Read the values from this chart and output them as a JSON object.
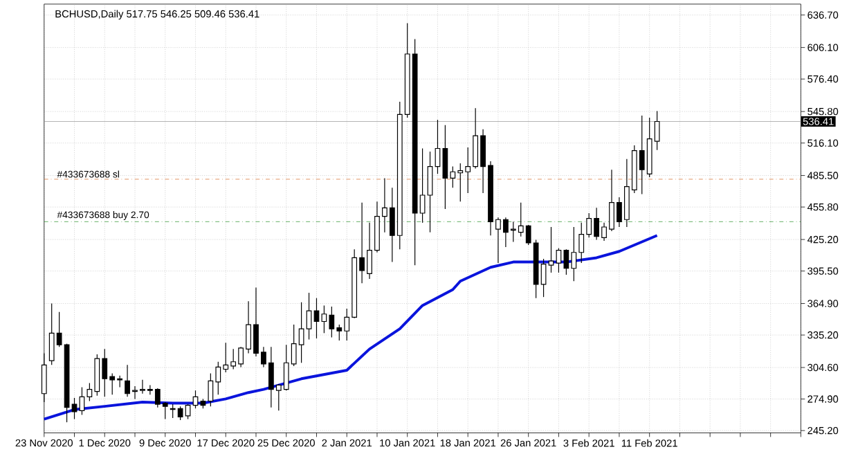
{
  "chart_data": {
    "type": "candlestick",
    "title": "BCHUSD,Daily 517.75 546.25 509.46 536.41",
    "x": [
      "2020-11-23",
      "2020-11-24",
      "2020-11-25",
      "2020-11-26",
      "2020-11-27",
      "2020-11-28",
      "2020-11-29",
      "2020-11-30",
      "2020-12-01",
      "2020-12-02",
      "2020-12-03",
      "2020-12-04",
      "2020-12-05",
      "2020-12-06",
      "2020-12-07",
      "2020-12-08",
      "2020-12-09",
      "2020-12-10",
      "2020-12-11",
      "2020-12-12",
      "2020-12-13",
      "2020-12-14",
      "2020-12-15",
      "2020-12-16",
      "2020-12-17",
      "2020-12-18",
      "2020-12-19",
      "2020-12-20",
      "2020-12-21",
      "2020-12-22",
      "2020-12-23",
      "2020-12-24",
      "2020-12-25",
      "2020-12-26",
      "2020-12-27",
      "2020-12-28",
      "2020-12-29",
      "2020-12-30",
      "2020-12-31",
      "2021-01-01",
      "2021-01-02",
      "2021-01-03",
      "2021-01-04",
      "2021-01-05",
      "2021-01-06",
      "2021-01-07",
      "2021-01-08",
      "2021-01-09",
      "2021-01-10",
      "2021-01-11",
      "2021-01-12",
      "2021-01-13",
      "2021-01-14",
      "2021-01-15",
      "2021-01-16",
      "2021-01-17",
      "2021-01-18",
      "2021-01-19",
      "2021-01-20",
      "2021-01-21",
      "2021-01-22",
      "2021-01-23",
      "2021-01-24",
      "2021-01-25",
      "2021-01-26",
      "2021-01-27",
      "2021-01-28",
      "2021-01-29",
      "2021-01-30",
      "2021-01-31",
      "2021-02-01",
      "2021-02-02",
      "2021-02-03",
      "2021-02-04",
      "2021-02-05",
      "2021-02-06",
      "2021-02-07",
      "2021-02-08",
      "2021-02-09",
      "2021-02-10",
      "2021-02-11",
      "2021-02-12"
    ],
    "ohlc": [
      [
        280,
        318,
        272,
        307
      ],
      [
        311,
        365,
        307,
        337
      ],
      [
        337,
        357,
        324,
        326
      ],
      [
        326,
        327,
        253,
        267
      ],
      [
        270,
        276,
        256,
        263
      ],
      [
        264,
        286,
        260,
        277
      ],
      [
        277,
        290,
        273,
        284
      ],
      [
        282,
        317,
        278,
        313
      ],
      [
        313,
        322,
        277,
        294
      ],
      [
        296,
        299,
        279,
        293
      ],
      [
        294,
        297,
        286,
        293
      ],
      [
        292,
        307,
        277,
        280
      ],
      [
        282,
        287,
        275,
        283
      ],
      [
        283,
        293,
        280,
        284
      ],
      [
        284,
        288,
        279,
        283
      ],
      [
        284,
        285,
        267,
        270
      ],
      [
        271,
        272,
        256,
        268
      ],
      [
        266,
        270,
        257,
        265
      ],
      [
        266,
        268,
        255,
        258
      ],
      [
        259,
        270,
        256,
        269
      ],
      [
        269,
        283,
        266,
        277
      ],
      [
        273,
        275,
        266,
        269
      ],
      [
        273,
        299,
        268,
        292
      ],
      [
        291,
        310,
        279,
        305
      ],
      [
        303,
        328,
        300,
        307
      ],
      [
        306,
        322,
        303,
        310
      ],
      [
        308,
        324,
        305,
        323
      ],
      [
        322,
        367,
        318,
        345
      ],
      [
        345,
        380,
        315,
        318
      ],
      [
        319,
        324,
        305,
        308
      ],
      [
        309,
        324,
        267,
        284
      ],
      [
        283,
        289,
        264,
        288
      ],
      [
        284,
        326,
        283,
        309
      ],
      [
        308,
        345,
        306,
        327
      ],
      [
        326,
        366,
        309,
        341
      ],
      [
        341,
        375,
        331,
        358
      ],
      [
        358,
        370,
        332,
        348
      ],
      [
        348,
        363,
        337,
        355
      ],
      [
        354,
        362,
        333,
        341
      ],
      [
        342,
        345,
        330,
        339
      ],
      [
        339,
        360,
        330,
        352
      ],
      [
        352,
        416,
        351,
        408
      ],
      [
        408,
        460,
        384,
        396
      ],
      [
        393,
        441,
        388,
        415
      ],
      [
        415,
        461,
        413,
        447
      ],
      [
        447,
        483,
        432,
        455
      ],
      [
        455,
        474,
        404,
        429
      ],
      [
        429,
        555,
        416,
        543
      ],
      [
        543,
        629,
        540,
        600
      ],
      [
        600,
        614,
        401,
        450
      ],
      [
        450,
        511,
        441,
        467
      ],
      [
        467,
        508,
        432,
        494
      ],
      [
        494,
        538,
        487,
        511
      ],
      [
        511,
        533,
        454,
        483
      ],
      [
        483,
        494,
        474,
        489
      ],
      [
        488,
        497,
        461,
        490
      ],
      [
        489,
        512,
        469,
        494
      ],
      [
        494,
        549,
        492,
        523
      ],
      [
        523,
        529,
        469,
        494
      ],
      [
        495,
        499,
        429,
        442
      ],
      [
        435,
        446,
        403,
        444
      ],
      [
        444,
        446,
        418,
        432
      ],
      [
        434,
        442,
        423,
        435
      ],
      [
        432,
        460,
        428,
        438
      ],
      [
        438,
        439,
        420,
        422
      ],
      [
        422,
        425,
        370,
        383
      ],
      [
        383,
        407,
        371,
        402
      ],
      [
        401,
        437,
        394,
        405
      ],
      [
        403,
        417,
        394,
        415
      ],
      [
        415,
        416,
        392,
        398
      ],
      [
        398,
        437,
        386,
        413
      ],
      [
        413,
        441,
        403,
        430
      ],
      [
        430,
        450,
        427,
        445
      ],
      [
        445,
        455,
        425,
        428
      ],
      [
        427,
        441,
        424,
        437
      ],
      [
        435,
        491,
        433,
        460
      ],
      [
        460,
        465,
        437,
        442
      ],
      [
        444,
        501,
        437,
        475
      ],
      [
        472,
        514,
        469,
        509
      ],
      [
        509,
        542,
        468,
        491
      ],
      [
        487,
        540,
        484,
        520
      ],
      [
        517.75,
        546.25,
        509.46,
        536.41
      ]
    ],
    "color": "#000000",
    "series": [
      {
        "type": "line",
        "color": "#0a14dc",
        "x": [
          "2020-11-23",
          "2020-11-27",
          "2020-12-01",
          "2020-12-06",
          "2020-12-10",
          "2020-12-14",
          "2020-12-17",
          "2020-12-20",
          "2020-12-22",
          "2020-12-27",
          "2021-01-02",
          "2021-01-05",
          "2021-01-09",
          "2021-01-12",
          "2021-01-16",
          "2021-01-17",
          "2021-01-21",
          "2021-01-24",
          "2021-01-28",
          "2021-01-31",
          "2021-02-04",
          "2021-02-07",
          "2021-02-12"
        ],
        "values": [
          256,
          265,
          268,
          272,
          271,
          271,
          275,
          281,
          284,
          294,
          302,
          322,
          341,
          363,
          378,
          386,
          399,
          404,
          404,
          404,
          408,
          414,
          429
        ]
      }
    ],
    "xlim": [
      "2020-11-23",
      "2021-03-03"
    ],
    "xticks": [
      {
        "value": "2020-11-23",
        "label": "23 Nov 2020"
      },
      {
        "value": "2020-11-27",
        "label": null
      },
      {
        "value": "2020-12-01",
        "label": "1 Dec 2020"
      },
      {
        "value": "2020-12-05",
        "label": null
      },
      {
        "value": "2020-12-09",
        "label": "9 Dec 2020"
      },
      {
        "value": "2020-12-13",
        "label": null
      },
      {
        "value": "2020-12-17",
        "label": "17 Dec 2020"
      },
      {
        "value": "2020-12-21",
        "label": null
      },
      {
        "value": "2020-12-25",
        "label": "25 Dec 2020"
      },
      {
        "value": "2020-12-29",
        "label": null
      },
      {
        "value": "2021-01-02",
        "label": "2 Jan 2021"
      },
      {
        "value": "2021-01-06",
        "label": null
      },
      {
        "value": "2021-01-10",
        "label": "10 Jan 2021"
      },
      {
        "value": "2021-01-14",
        "label": null
      },
      {
        "value": "2021-01-18",
        "label": "18 Jan 2021"
      },
      {
        "value": "2021-01-22",
        "label": null
      },
      {
        "value": "2021-01-26",
        "label": "26 Jan 2021"
      },
      {
        "value": "2021-01-30",
        "label": null
      },
      {
        "value": "2021-02-03",
        "label": "3 Feb 2021"
      },
      {
        "value": "2021-02-07",
        "label": null
      },
      {
        "value": "2021-02-11",
        "label": "11 Feb 2021"
      },
      {
        "value": "2021-02-15",
        "label": null
      },
      {
        "value": "2021-02-19",
        "label": null
      },
      {
        "value": "2021-02-23",
        "label": null
      },
      {
        "value": "2021-02-27",
        "label": null
      },
      {
        "value": "2021-03-03",
        "label": null
      }
    ],
    "ylim": [
      243,
      647
    ],
    "yticks": [
      {
        "value": 245.2,
        "label": "245.20"
      },
      {
        "value": 274.9,
        "label": "274.90"
      },
      {
        "value": 304.6,
        "label": "304.60"
      },
      {
        "value": 335.2,
        "label": "335.20"
      },
      {
        "value": 364.9,
        "label": "364.90"
      },
      {
        "value": 395.5,
        "label": "395.50"
      },
      {
        "value": 425.2,
        "label": "425.20"
      },
      {
        "value": 455.8,
        "label": "455.80"
      },
      {
        "value": 485.5,
        "label": "485.50"
      },
      {
        "value": 516.1,
        "label": "516.10"
      },
      {
        "value": 545.8,
        "label": "545.80"
      },
      {
        "value": 576.4,
        "label": "576.40"
      },
      {
        "value": 606.1,
        "label": "606.10"
      },
      {
        "value": 636.7,
        "label": "636.70"
      }
    ],
    "ref_lines": [
      {
        "axis": "y",
        "value": 536.41,
        "label": "536.41",
        "color": "#a0a0a0",
        "line_style": "solid"
      },
      {
        "axis": "y",
        "value": 482,
        "label": "#433673688 sl",
        "color": "#d9773a",
        "line_style": "dashed"
      },
      {
        "axis": "y",
        "value": 442,
        "label": "#433673688 buy 2.70",
        "color": "#3a9a3a",
        "line_style": "dashed"
      }
    ],
    "grid": true
  }
}
